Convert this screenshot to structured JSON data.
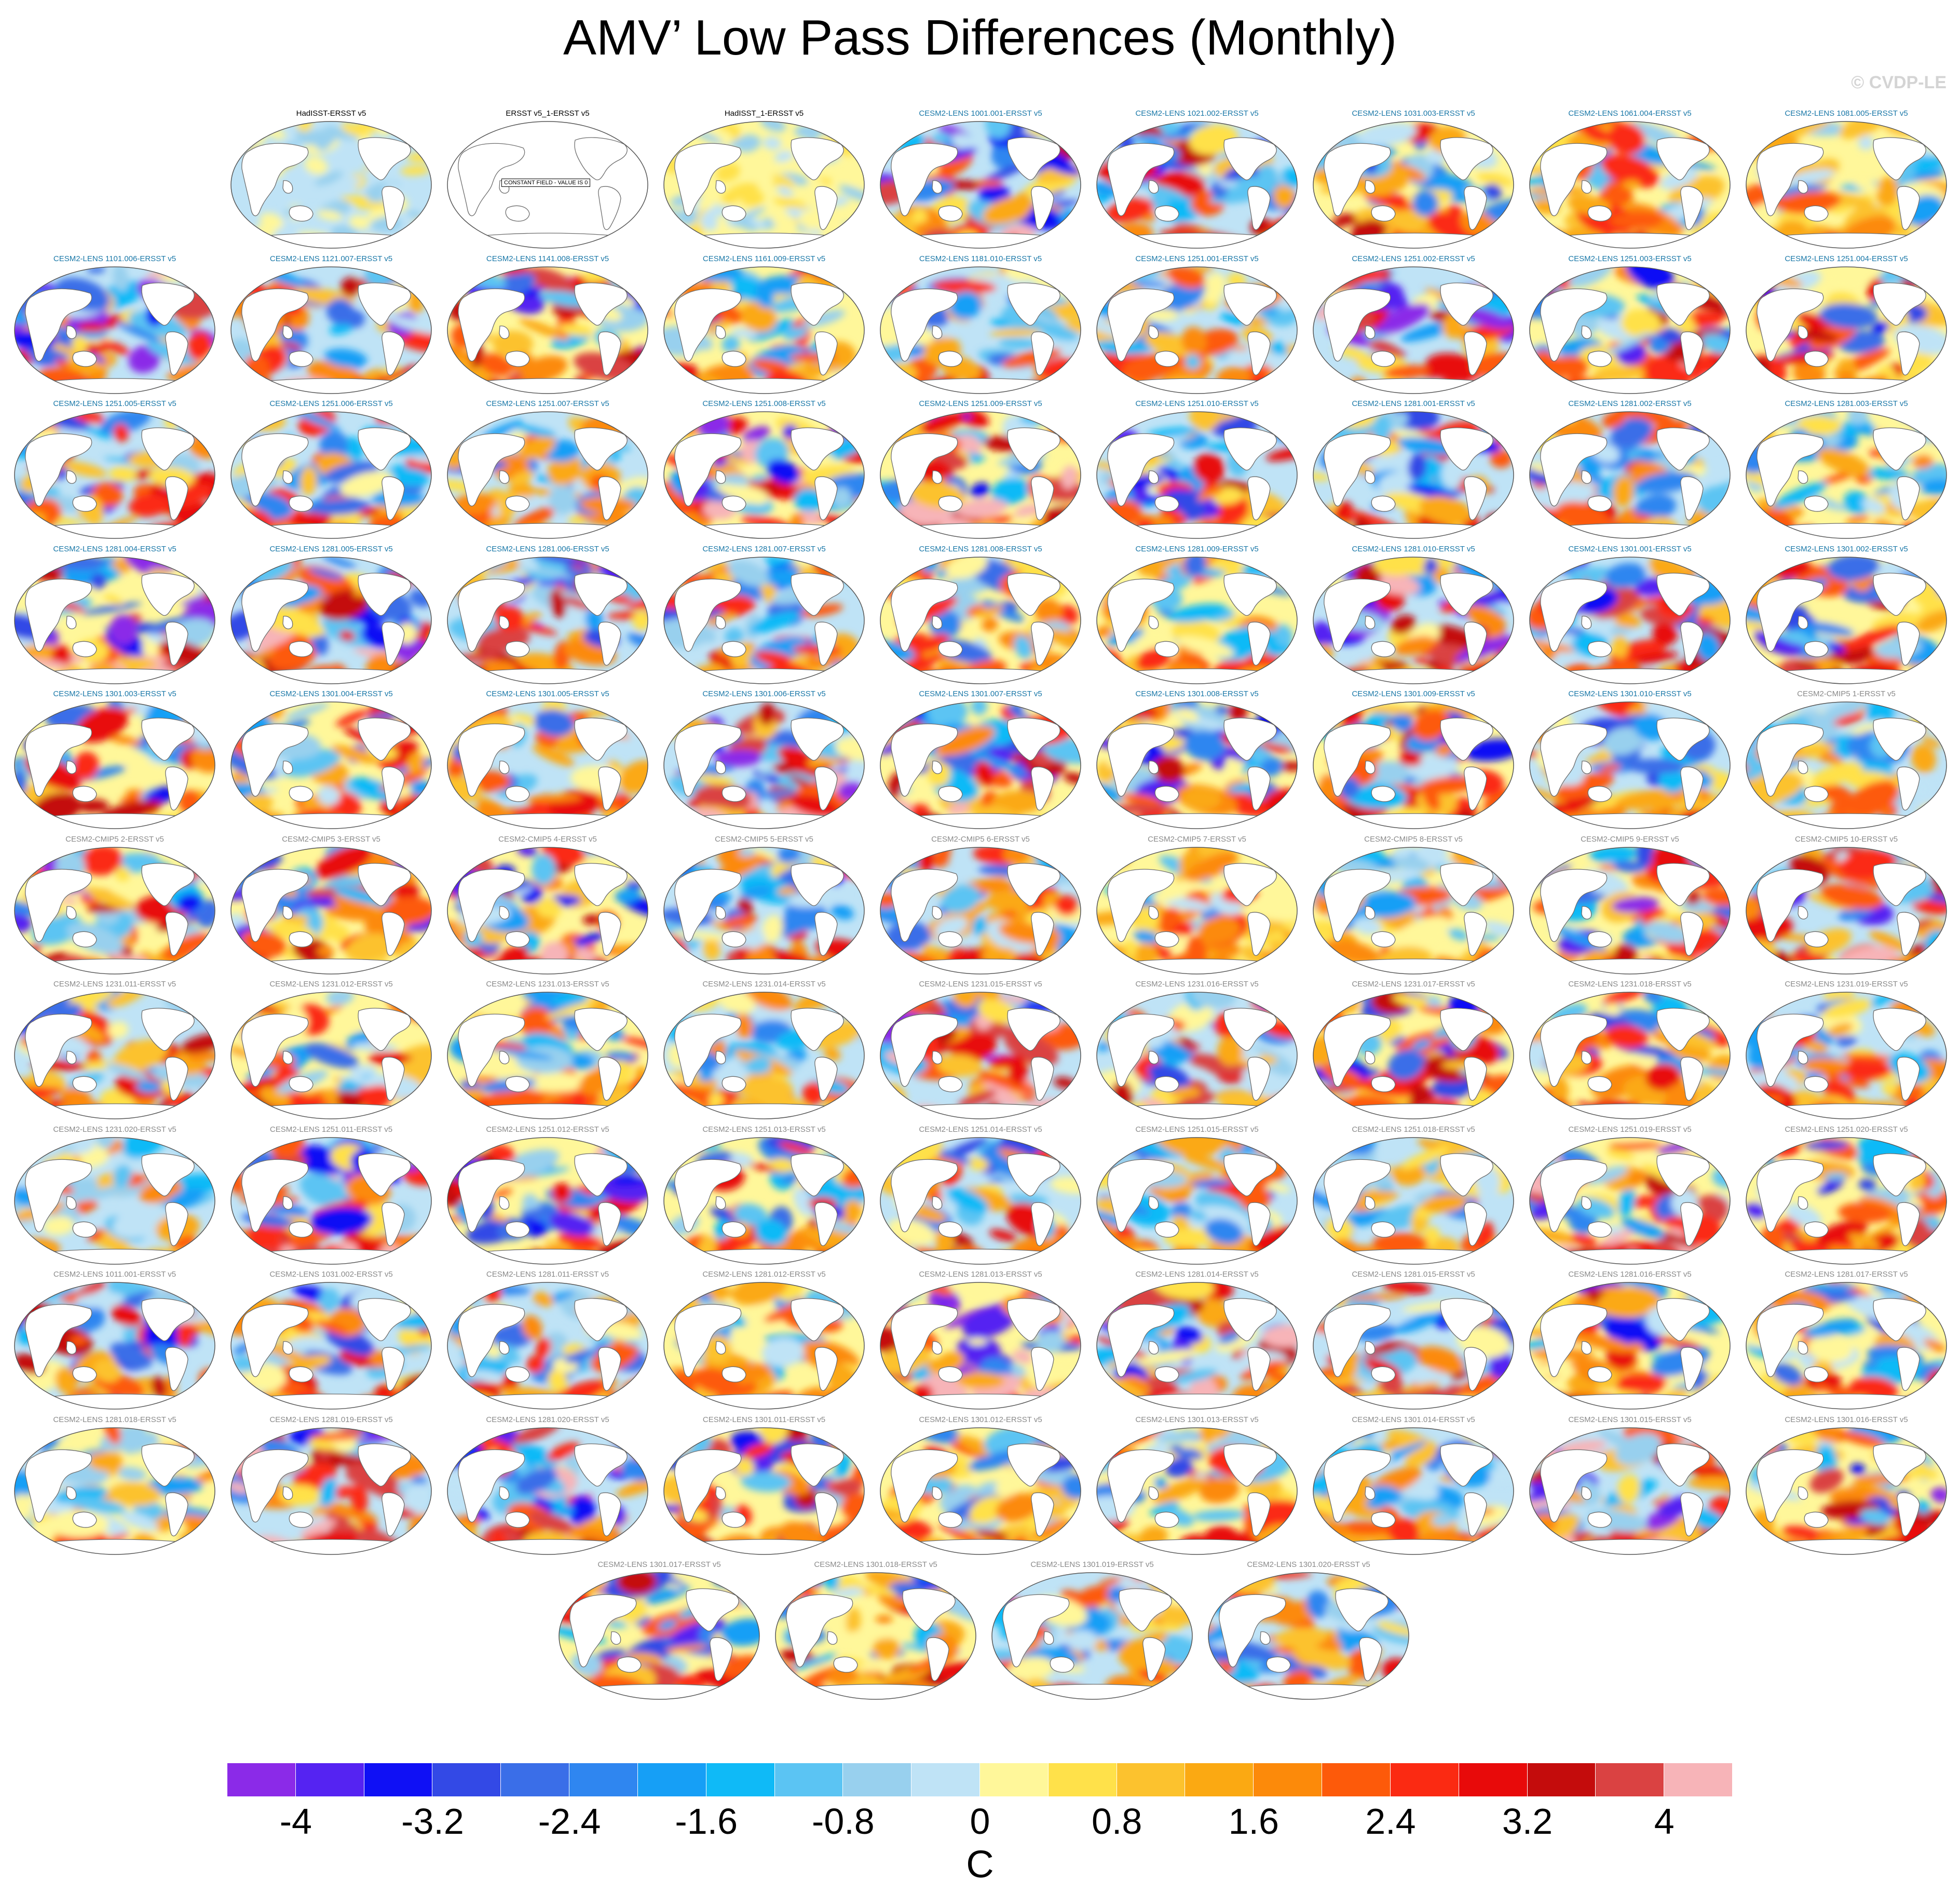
{
  "header": {
    "title": "AMV’ Low Pass Differences (Monthly)",
    "copyright": "© CVDP-LE"
  },
  "chart_data": {
    "type": "heatmap",
    "description_kind": "small-multiple global SST difference maps",
    "panels": [
      {
        "label": "HadISST-ERSST v5",
        "color": "black",
        "pattern": "weak"
      },
      {
        "label": "ERSST v5_1-ERSST v5",
        "color": "black",
        "pattern": "constant",
        "annotation": "CONSTANT FIELD - VALUE IS 0"
      },
      {
        "label": "HadISST_1-ERSST v5",
        "color": "black",
        "pattern": "weak"
      },
      {
        "label": "CESM2-LENS 1001.001-ERSST v5",
        "color": "lens"
      },
      {
        "label": "CESM2-LENS 1021.002-ERSST v5",
        "color": "lens"
      },
      {
        "label": "CESM2-LENS 1031.003-ERSST v5",
        "color": "lens"
      },
      {
        "label": "CESM2-LENS 1061.004-ERSST v5",
        "color": "lens"
      },
      {
        "label": "CESM2-LENS 1081.005-ERSST v5",
        "color": "lens"
      },
      {
        "label": "CESM2-LENS 1101.006-ERSST v5",
        "color": "lens"
      },
      {
        "label": "CESM2-LENS 1121.007-ERSST v5",
        "color": "lens"
      },
      {
        "label": "CESM2-LENS 1141.008-ERSST v5",
        "color": "lens"
      },
      {
        "label": "CESM2-LENS 1161.009-ERSST v5",
        "color": "lens"
      },
      {
        "label": "CESM2-LENS 1181.010-ERSST v5",
        "color": "lens"
      },
      {
        "label": "CESM2-LENS 1251.001-ERSST v5",
        "color": "lens"
      },
      {
        "label": "CESM2-LENS 1251.002-ERSST v5",
        "color": "lens"
      },
      {
        "label": "CESM2-LENS 1251.003-ERSST v5",
        "color": "lens"
      },
      {
        "label": "CESM2-LENS 1251.004-ERSST v5",
        "color": "lens"
      },
      {
        "label": "CESM2-LENS 1251.005-ERSST v5",
        "color": "lens"
      },
      {
        "label": "CESM2-LENS 1251.006-ERSST v5",
        "color": "lens"
      },
      {
        "label": "CESM2-LENS 1251.007-ERSST v5",
        "color": "lens"
      },
      {
        "label": "CESM2-LENS 1251.008-ERSST v5",
        "color": "lens"
      },
      {
        "label": "CESM2-LENS 1251.009-ERSST v5",
        "color": "lens"
      },
      {
        "label": "CESM2-LENS 1251.010-ERSST v5",
        "color": "lens"
      },
      {
        "label": "CESM2-LENS 1281.001-ERSST v5",
        "color": "lens"
      },
      {
        "label": "CESM2-LENS 1281.002-ERSST v5",
        "color": "lens"
      },
      {
        "label": "CESM2-LENS 1281.003-ERSST v5",
        "color": "lens"
      },
      {
        "label": "CESM2-LENS 1281.004-ERSST v5",
        "color": "lens"
      },
      {
        "label": "CESM2-LENS 1281.005-ERSST v5",
        "color": "lens"
      },
      {
        "label": "CESM2-LENS 1281.006-ERSST v5",
        "color": "lens"
      },
      {
        "label": "CESM2-LENS 1281.007-ERSST v5",
        "color": "lens"
      },
      {
        "label": "CESM2-LENS 1281.008-ERSST v5",
        "color": "lens"
      },
      {
        "label": "CESM2-LENS 1281.009-ERSST v5",
        "color": "lens"
      },
      {
        "label": "CESM2-LENS 1281.010-ERSST v5",
        "color": "lens"
      },
      {
        "label": "CESM2-LENS 1301.001-ERSST v5",
        "color": "lens"
      },
      {
        "label": "CESM2-LENS 1301.002-ERSST v5",
        "color": "lens"
      },
      {
        "label": "CESM2-LENS 1301.003-ERSST v5",
        "color": "lens"
      },
      {
        "label": "CESM2-LENS 1301.004-ERSST v5",
        "color": "lens"
      },
      {
        "label": "CESM2-LENS 1301.005-ERSST v5",
        "color": "lens"
      },
      {
        "label": "CESM2-LENS 1301.006-ERSST v5",
        "color": "lens"
      },
      {
        "label": "CESM2-LENS 1301.007-ERSST v5",
        "color": "lens"
      },
      {
        "label": "CESM2-LENS 1301.008-ERSST v5",
        "color": "lens"
      },
      {
        "label": "CESM2-LENS 1301.009-ERSST v5",
        "color": "lens"
      },
      {
        "label": "CESM2-LENS 1301.010-ERSST v5",
        "color": "lens"
      },
      {
        "label": "CESM2-CMIP5 1-ERSST v5",
        "color": "gray"
      },
      {
        "label": "CESM2-CMIP5 2-ERSST v5",
        "color": "gray"
      },
      {
        "label": "CESM2-CMIP5 3-ERSST v5",
        "color": "gray"
      },
      {
        "label": "CESM2-CMIP5 4-ERSST v5",
        "color": "gray"
      },
      {
        "label": "CESM2-CMIP5 5-ERSST v5",
        "color": "gray"
      },
      {
        "label": "CESM2-CMIP5 6-ERSST v5",
        "color": "gray"
      },
      {
        "label": "CESM2-CMIP5 7-ERSST v5",
        "color": "gray"
      },
      {
        "label": "CESM2-CMIP5 8-ERSST v5",
        "color": "gray"
      },
      {
        "label": "CESM2-CMIP5 9-ERSST v5",
        "color": "gray"
      },
      {
        "label": "CESM2-CMIP5 10-ERSST v5",
        "color": "gray"
      },
      {
        "label": "CESM2-LENS 1231.011-ERSST v5",
        "color": "gray"
      },
      {
        "label": "CESM2-LENS 1231.012-ERSST v5",
        "color": "gray"
      },
      {
        "label": "CESM2-LENS 1231.013-ERSST v5",
        "color": "gray"
      },
      {
        "label": "CESM2-LENS 1231.014-ERSST v5",
        "color": "gray"
      },
      {
        "label": "CESM2-LENS 1231.015-ERSST v5",
        "color": "gray"
      },
      {
        "label": "CESM2-LENS 1231.016-ERSST v5",
        "color": "gray"
      },
      {
        "label": "CESM2-LENS 1231.017-ERSST v5",
        "color": "gray"
      },
      {
        "label": "CESM2-LENS 1231.018-ERSST v5",
        "color": "gray"
      },
      {
        "label": "CESM2-LENS 1231.019-ERSST v5",
        "color": "gray"
      },
      {
        "label": "CESM2-LENS 1231.020-ERSST v5",
        "color": "gray"
      },
      {
        "label": "CESM2-LENS 1251.011-ERSST v5",
        "color": "gray"
      },
      {
        "label": "CESM2-LENS 1251.012-ERSST v5",
        "color": "gray"
      },
      {
        "label": "CESM2-LENS 1251.013-ERSST v5",
        "color": "gray"
      },
      {
        "label": "CESM2-LENS 1251.014-ERSST v5",
        "color": "gray"
      },
      {
        "label": "CESM2-LENS 1251.015-ERSST v5",
        "color": "gray"
      },
      {
        "label": "CESM2-LENS 1251.018-ERSST v5",
        "color": "gray"
      },
      {
        "label": "CESM2-LENS 1251.019-ERSST v5",
        "color": "gray"
      },
      {
        "label": "CESM2-LENS 1251.020-ERSST v5",
        "color": "gray"
      },
      {
        "label": "CESM2-LENS 1011.001-ERSST v5",
        "color": "gray"
      },
      {
        "label": "CESM2-LENS 1031.002-ERSST v5",
        "color": "gray"
      },
      {
        "label": "CESM2-LENS 1281.011-ERSST v5",
        "color": "gray"
      },
      {
        "label": "CESM2-LENS 1281.012-ERSST v5",
        "color": "gray"
      },
      {
        "label": "CESM2-LENS 1281.013-ERSST v5",
        "color": "gray"
      },
      {
        "label": "CESM2-LENS 1281.014-ERSST v5",
        "color": "gray"
      },
      {
        "label": "CESM2-LENS 1281.015-ERSST v5",
        "color": "gray"
      },
      {
        "label": "CESM2-LENS 1281.016-ERSST v5",
        "color": "gray"
      },
      {
        "label": "CESM2-LENS 1281.017-ERSST v5",
        "color": "gray"
      },
      {
        "label": "CESM2-LENS 1281.018-ERSST v5",
        "color": "gray"
      },
      {
        "label": "CESM2-LENS 1281.019-ERSST v5",
        "color": "gray"
      },
      {
        "label": "CESM2-LENS 1281.020-ERSST v5",
        "color": "gray"
      },
      {
        "label": "CESM2-LENS 1301.011-ERSST v5",
        "color": "gray"
      },
      {
        "label": "CESM2-LENS 1301.012-ERSST v5",
        "color": "gray"
      },
      {
        "label": "CESM2-LENS 1301.013-ERSST v5",
        "color": "gray"
      },
      {
        "label": "CESM2-LENS 1301.014-ERSST v5",
        "color": "gray"
      },
      {
        "label": "CESM2-LENS 1301.015-ERSST v5",
        "color": "gray"
      },
      {
        "label": "CESM2-LENS 1301.016-ERSST v5",
        "color": "gray"
      },
      {
        "label": "CESM2-LENS 1301.017-ERSST v5",
        "color": "gray"
      },
      {
        "label": "CESM2-LENS 1301.018-ERSST v5",
        "color": "gray"
      },
      {
        "label": "CESM2-LENS 1301.019-ERSST v5",
        "color": "gray"
      },
      {
        "label": "CESM2-LENS 1301.020-ERSST v5",
        "color": "gray"
      }
    ],
    "colorbar": {
      "levels": [
        -4.4,
        -4.0,
        -3.6,
        -3.2,
        -2.8,
        -2.4,
        -2.0,
        -1.6,
        -1.2,
        -0.8,
        -0.4,
        0,
        0.4,
        0.8,
        1.2,
        1.6,
        2.0,
        2.4,
        2.8,
        3.2,
        3.6,
        4.0,
        4.4
      ],
      "tick_labels": [
        "-4",
        "-3.2",
        "-2.4",
        "-1.6",
        "-0.8",
        "0",
        "0.8",
        "1.6",
        "2.4",
        "3.2",
        "4"
      ],
      "tick_values": [
        -4,
        -3.2,
        -2.4,
        -1.6,
        -0.8,
        0,
        0.8,
        1.6,
        2.4,
        3.2,
        4
      ],
      "units": "C",
      "colors": [
        "#8b2ae8",
        "#5523f2",
        "#0f10f5",
        "#3349e6",
        "#3a6ee8",
        "#2f86f0",
        "#169ff6",
        "#0fbaf7",
        "#5bc4f3",
        "#98d0ee",
        "#bfe3f6",
        "#fff79a",
        "#ffe14a",
        "#fcc22e",
        "#fba912",
        "#fc8a0a",
        "#fd5a0a",
        "#fb2a12",
        "#e80a0a",
        "#c40c0c",
        "#da4242",
        "#f7b4b8"
      ]
    }
  },
  "colors": {
    "lens_title": "#1a78a8",
    "gray_title": "#8a8a8a",
    "black_title": "#000000",
    "land": "#ffffff",
    "coast": "#6e6e6e"
  }
}
